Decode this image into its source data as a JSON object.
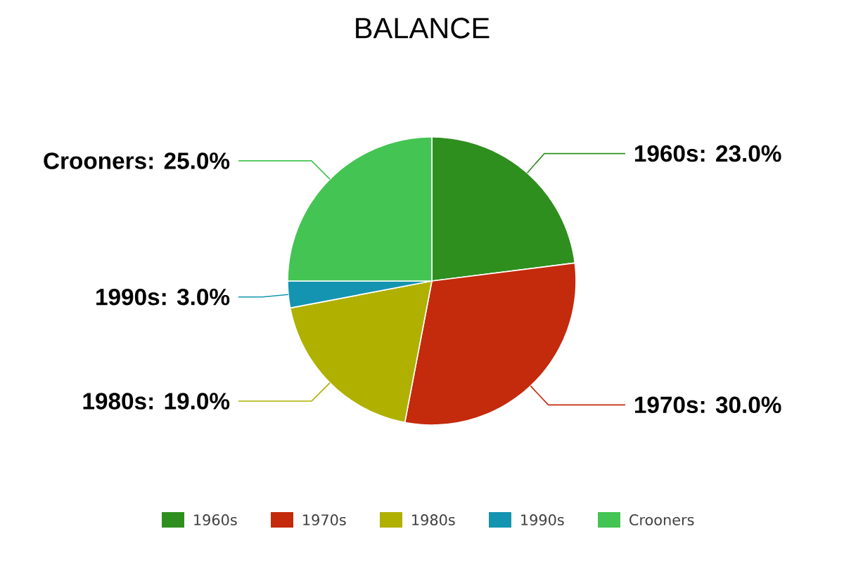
{
  "chart_data": {
    "type": "pie",
    "title": "BALANCE",
    "categories": [
      "1960s",
      "1970s",
      "1980s",
      "1990s",
      "Crooners"
    ],
    "values": [
      23,
      30,
      19,
      3,
      25
    ],
    "colors": [
      "#2e8f1e",
      "#c42a0c",
      "#b0b000",
      "#1494b0",
      "#44c452"
    ],
    "value_labels": [
      "1960s: 23.0%",
      "1970s: 30.0%",
      "1980s: 19.0%",
      "1990s: 3.0%",
      "Crooners: 25.0%"
    ],
    "legend": "bottom"
  }
}
